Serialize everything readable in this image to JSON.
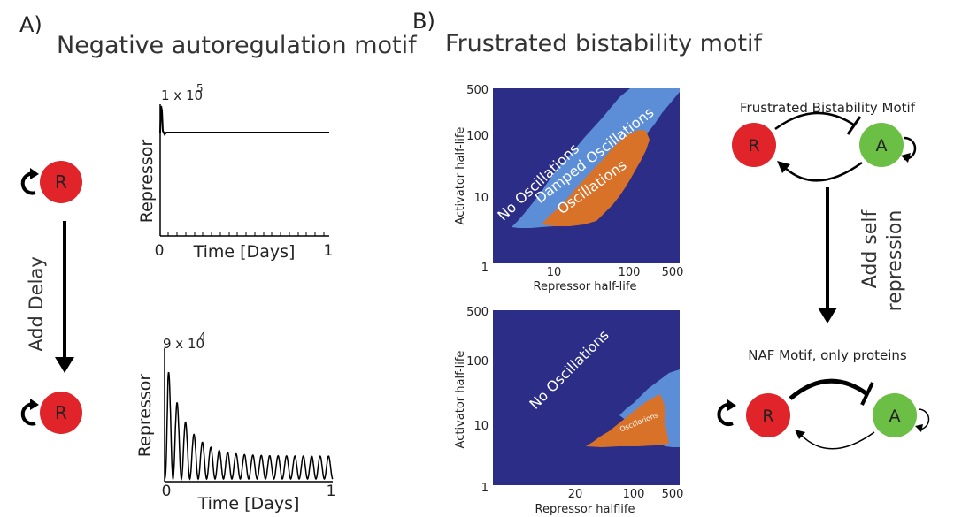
{
  "panel_a": {
    "label": "A)",
    "title": "Negative autoregulation motif",
    "node_label": "R",
    "arrow_label": "Add Delay",
    "plot_top": {
      "scale": "1 x 10",
      "scale_exp": "5",
      "ylabel": "Repressor",
      "xlabel": "Time [Days]",
      "tick_start": "0",
      "tick_end": "1"
    },
    "plot_bottom": {
      "scale": "9 x 10",
      "scale_exp": "4",
      "ylabel": "Repressor",
      "xlabel": "Time [Days]",
      "tick_start": "0",
      "tick_end": "1"
    }
  },
  "panel_b": {
    "label": "B)",
    "title": "Frustrated bistability motif",
    "heatmap_top": {
      "ylabel": "Activator half-life",
      "xlabel": "Repressor half-life",
      "y_ticks": [
        "500",
        "100",
        "10",
        "1"
      ],
      "x_ticks": [
        "10",
        "100",
        "500"
      ],
      "regions": [
        "No Oscillations",
        "Damped Oscillations",
        "Oscillations"
      ]
    },
    "heatmap_bottom": {
      "ylabel": "Activator half-life",
      "xlabel": "Repressor halflife",
      "y_ticks": [
        "500",
        "100",
        "10",
        "1"
      ],
      "x_ticks": [
        "20",
        "100",
        "500"
      ],
      "regions": [
        "No Oscillations",
        "Oscillations"
      ]
    },
    "motif_top": {
      "title": "Frustrated Bistability Motif",
      "node_r": "R",
      "node_a": "A"
    },
    "arrow_label_line1": "Add self",
    "arrow_label_line2": "repression",
    "motif_bottom": {
      "title": "NAF Motif, only proteins",
      "node_r": "R",
      "node_a": "A"
    }
  },
  "colors": {
    "no_oscillations": "#2b2d86",
    "damped_oscillations": "#5b8ed6",
    "oscillations": "#d97229",
    "node_r": "#e0242a",
    "node_a": "#6cbf45"
  }
}
